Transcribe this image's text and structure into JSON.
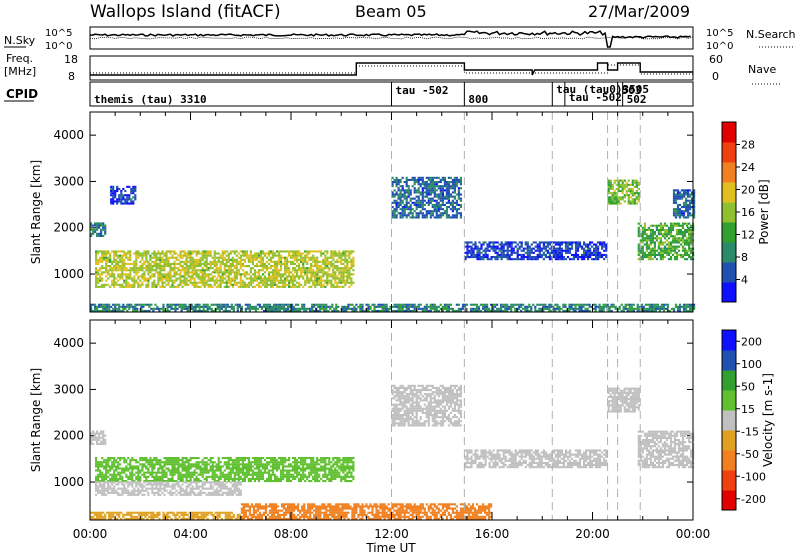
{
  "header": {
    "station": "Wallops Island (fitACF)",
    "beam": "Beam 05",
    "date": "27/Mar/2009"
  },
  "noise_panel": {
    "left_label": "N.Sky",
    "right_label": "N.Search",
    "left_ticks": [
      "10^5",
      "10^0"
    ],
    "right_ticks": [
      "10^5",
      "10^0"
    ]
  },
  "freq_panel": {
    "left_label_line1": "Freq.",
    "left_label_line2": "[MHz]",
    "right_label": "Nave",
    "left_ticks": [
      "18",
      "8"
    ],
    "right_ticks": [
      "60",
      "0"
    ]
  },
  "cpid_panel": {
    "label": "CPID",
    "segments": [
      {
        "label": "themis (tau) 3310",
        "start_hour": 0
      },
      {
        "label": "tau -502",
        "start_hour": 12.0
      },
      {
        "label": "800",
        "start_hour": 14.9
      },
      {
        "label": "tau (tau0)3505",
        "start_hour": 18.4
      },
      {
        "label": "tau -502",
        "start_hour": 18.9
      },
      {
        "label": "503",
        "start_hour": 21.0
      },
      {
        "label": "502",
        "start_hour": 21.2
      }
    ]
  },
  "colors": {
    "power": [
      "#1010ff",
      "#2050b0",
      "#2a8a6a",
      "#30a030",
      "#90c030",
      "#e0c020",
      "#f08020",
      "#f04010",
      "#e00000"
    ],
    "velocity": [
      "#e00000",
      "#f04010",
      "#f08020",
      "#e0a020",
      "#c0c0c0",
      "#60c030",
      "#30a030",
      "#2050b0",
      "#1010ff"
    ]
  },
  "chart_data": [
    {
      "type": "heatmap",
      "title": "Power",
      "ylabel": "Slant Range [km]",
      "ylim": [
        180,
        4500
      ],
      "xlim": [
        0,
        24
      ],
      "x_ticks": [
        "00:00",
        "04:00",
        "08:00",
        "12:00",
        "16:00",
        "20:00",
        "00:00"
      ],
      "y_ticks": [
        "1000",
        "2000",
        "3000",
        "4000"
      ],
      "colorbar_label": "Power [dB]",
      "colorbar_ticks": [
        "4",
        "8",
        "12",
        "16",
        "20",
        "24",
        "28"
      ],
      "regions": [
        {
          "t0": 0.2,
          "t1": 10.5,
          "r0": 700,
          "r1": 1500,
          "value": 18
        },
        {
          "t0": 0.8,
          "t1": 1.8,
          "r0": 2500,
          "r1": 2900,
          "value": 6
        },
        {
          "t0": 0.0,
          "t1": 0.6,
          "r0": 1800,
          "r1": 2100,
          "value": 10
        },
        {
          "t0": 12.0,
          "t1": 14.8,
          "r0": 2200,
          "r1": 3100,
          "value": 8
        },
        {
          "t0": 14.9,
          "t1": 20.5,
          "r0": 1300,
          "r1": 1700,
          "value": 6
        },
        {
          "t0": 20.6,
          "t1": 21.8,
          "r0": 2500,
          "r1": 3000,
          "value": 16
        },
        {
          "t0": 21.8,
          "t1": 24.0,
          "r0": 1300,
          "r1": 2100,
          "value": 14
        },
        {
          "t0": 23.2,
          "t1": 24.0,
          "r0": 2200,
          "r1": 2800,
          "value": 8
        },
        {
          "t0": 0.0,
          "t1": 24.0,
          "r0": 180,
          "r1": 320,
          "value": 10
        }
      ]
    },
    {
      "type": "heatmap",
      "title": "Velocity",
      "ylabel": "Slant Range [km]",
      "xlabel": "Time UT",
      "ylim": [
        180,
        4500
      ],
      "xlim": [
        0,
        24
      ],
      "x_ticks": [
        "00:00",
        "04:00",
        "08:00",
        "12:00",
        "16:00",
        "20:00",
        "00:00"
      ],
      "y_ticks": [
        "1000",
        "2000",
        "3000",
        "4000"
      ],
      "colorbar_label": "Velocity [m s-1]",
      "colorbar_ticks": [
        "200",
        "100",
        "50",
        "15",
        "-15",
        "-50",
        "-100",
        "-200"
      ],
      "regions": [
        {
          "t0": 0.2,
          "t1": 10.5,
          "r0": 1000,
          "r1": 1500,
          "value": 40
        },
        {
          "t0": 0.2,
          "t1": 6.0,
          "r0": 700,
          "r1": 1000,
          "value": 0
        },
        {
          "t0": 0.0,
          "t1": 0.6,
          "r0": 1800,
          "r1": 2100,
          "value": 0
        },
        {
          "t0": 12.0,
          "t1": 14.8,
          "r0": 2200,
          "r1": 3100,
          "value": 0
        },
        {
          "t0": 14.9,
          "t1": 20.5,
          "r0": 1300,
          "r1": 1700,
          "value": 0
        },
        {
          "t0": 20.6,
          "t1": 21.8,
          "r0": 2500,
          "r1": 3000,
          "value": 0
        },
        {
          "t0": 21.8,
          "t1": 24.0,
          "r0": 1300,
          "r1": 2100,
          "value": 0
        },
        {
          "t0": 6.0,
          "t1": 16.0,
          "r0": 180,
          "r1": 500,
          "value": -60
        },
        {
          "t0": 0.0,
          "t1": 6.0,
          "r0": 180,
          "r1": 320,
          "value": -20
        }
      ]
    }
  ]
}
